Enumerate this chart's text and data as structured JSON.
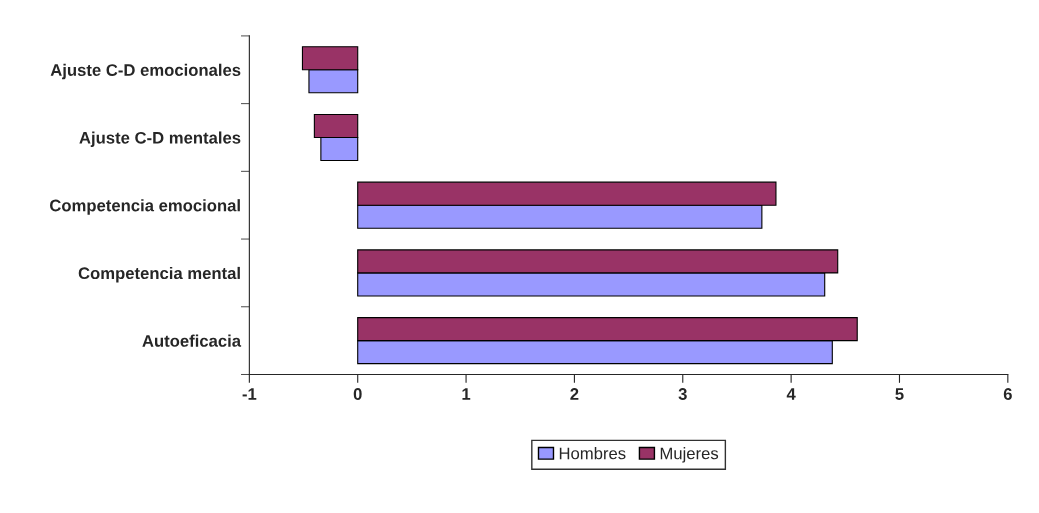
{
  "chart_data": {
    "type": "bar",
    "orientation": "horizontal",
    "categories": [
      "Ajuste C-D emocionales",
      "Ajuste C-D mentales",
      "Competencia emocional",
      "Competencia mental",
      "Autoeficacia"
    ],
    "series": [
      {
        "name": "Hombres",
        "color": "#9999ff",
        "values": [
          -0.45,
          -0.34,
          3.73,
          4.31,
          4.38
        ]
      },
      {
        "name": "Mujeres",
        "color": "#993366",
        "values": [
          -0.51,
          -0.4,
          3.86,
          4.43,
          4.61
        ]
      }
    ],
    "xlim": [
      -1,
      6
    ],
    "xticks": [
      -1,
      0,
      1,
      2,
      3,
      4,
      5,
      6
    ],
    "grid": false,
    "legend": "bottom"
  }
}
